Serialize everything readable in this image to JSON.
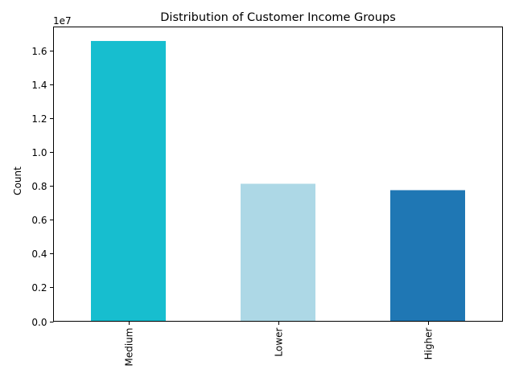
{
  "chart_data": {
    "type": "bar",
    "title": "Distribution of Customer Income Groups",
    "xlabel": "",
    "ylabel": "Count",
    "y_multiplier_label": "1e7",
    "y_multiplier": 10000000,
    "ylim": [
      0,
      17400000
    ],
    "yticks": [
      0,
      2000000,
      4000000,
      6000000,
      8000000,
      10000000,
      12000000,
      14000000,
      16000000
    ],
    "ytick_labels": [
      "0.0",
      "0.2",
      "0.4",
      "0.6",
      "0.8",
      "1.0",
      "1.2",
      "1.4",
      "1.6"
    ],
    "categories": [
      "Medium",
      "Lower",
      "Higher"
    ],
    "values": [
      16570000,
      8130000,
      7750000
    ],
    "colors": [
      "#17becf",
      "#add8e6",
      "#1f77b4"
    ],
    "grid": false,
    "legend": "none"
  }
}
